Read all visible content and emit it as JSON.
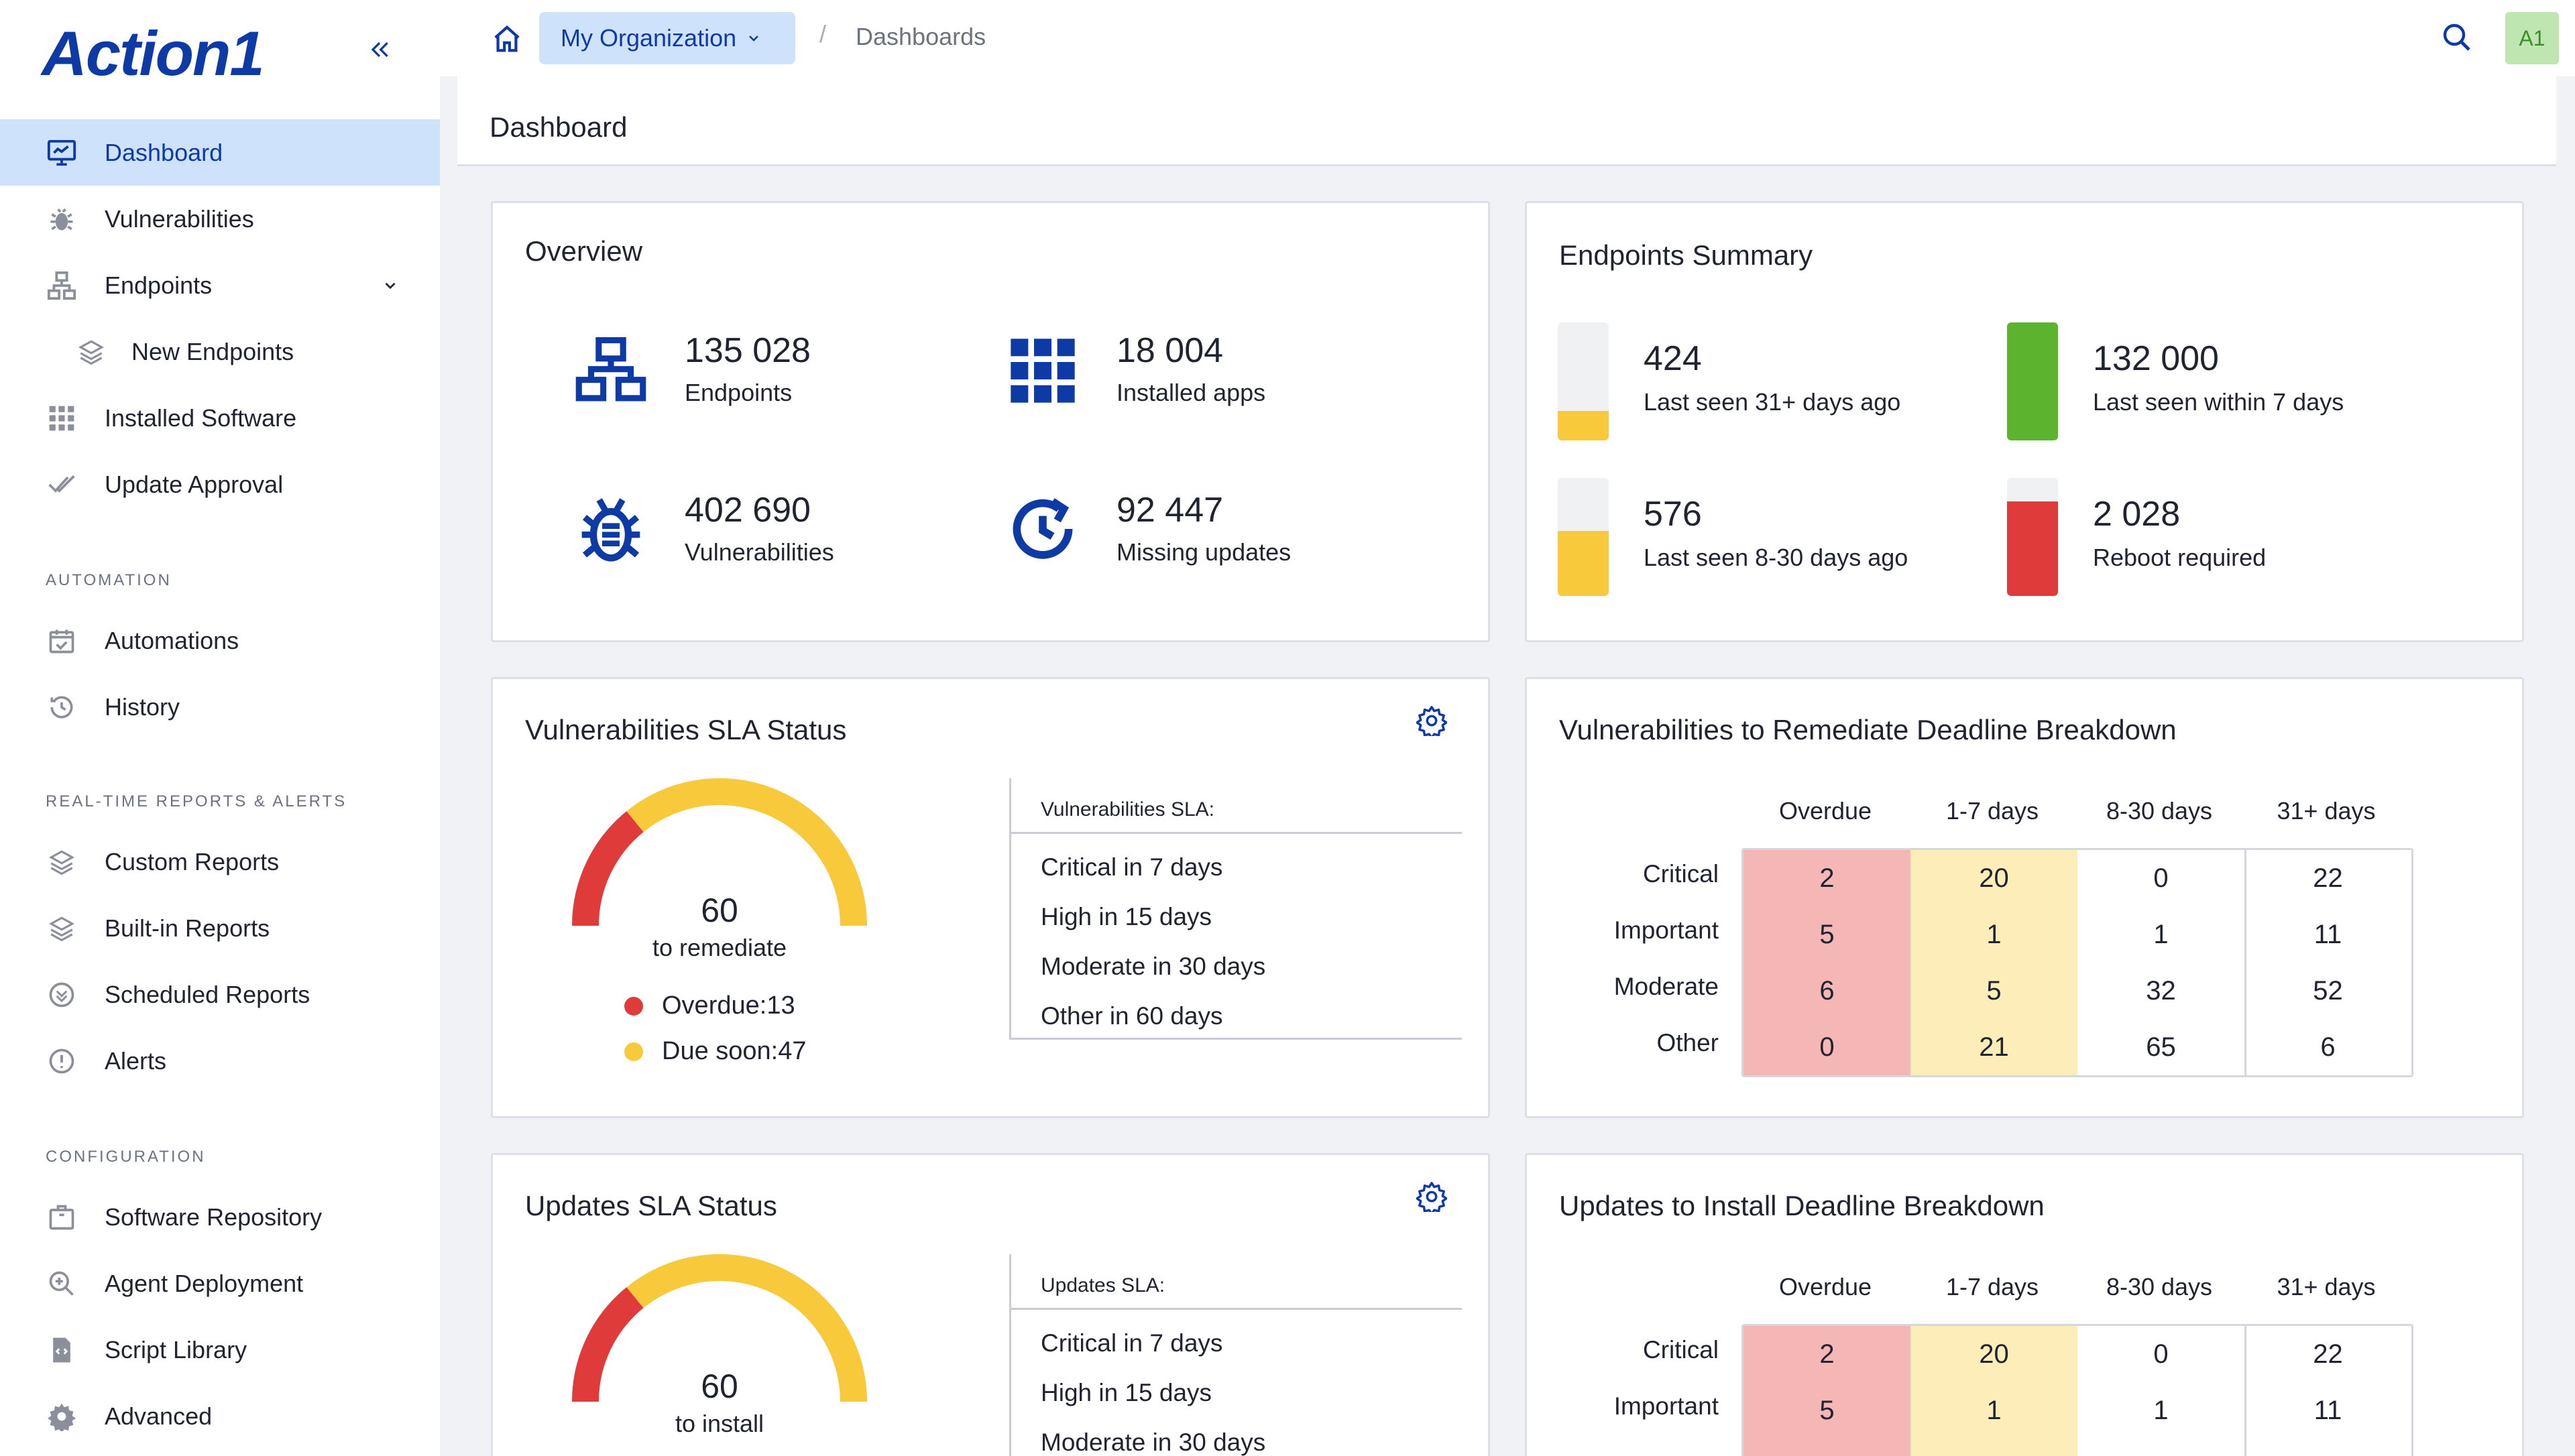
{
  "app": {
    "logo_text": "Action1"
  },
  "sidebar": {
    "items": [
      {
        "label": "Dashboard"
      },
      {
        "label": "Vulnerabilities"
      },
      {
        "label": "Endpoints"
      },
      {
        "label": "New Endpoints"
      },
      {
        "label": "Installed Software"
      },
      {
        "label": "Update Approval"
      },
      {
        "label": "Automations"
      },
      {
        "label": "History"
      },
      {
        "label": "Custom Reports"
      },
      {
        "label": "Built-in Reports"
      },
      {
        "label": "Scheduled Reports"
      },
      {
        "label": "Alerts"
      },
      {
        "label": "Software Repository"
      },
      {
        "label": "Agent Deployment"
      },
      {
        "label": "Script Library"
      },
      {
        "label": "Advanced"
      }
    ],
    "sections": {
      "automation": "AUTOMATION",
      "reports": "REAL-TIME REPORTS & ALERTS",
      "configuration": "CONFIGURATION"
    }
  },
  "topbar": {
    "organization": "My Organization",
    "separator": "/",
    "breadcrumb": "Dashboards",
    "avatar": "A1"
  },
  "page": {
    "title": "Dashboard"
  },
  "overview": {
    "title": "Overview",
    "stats": [
      {
        "value": "135 028",
        "label": "Endpoints",
        "icon": "network-icon"
      },
      {
        "value": "18 004",
        "label": "Installed apps",
        "icon": "grid-apps-icon"
      },
      {
        "value": "402 690",
        "label": "Vulnerabilities",
        "icon": "bug-icon"
      },
      {
        "value": "92 447",
        "label": "Missing updates",
        "icon": "clock-refresh-icon"
      }
    ]
  },
  "endpoints_summary": {
    "title": "Endpoints Summary",
    "items": [
      {
        "value": "424",
        "label": "Last seen 31+ days ago",
        "fill_fraction": 0.25,
        "color": "#f8c93a"
      },
      {
        "value": "132 000",
        "label": "Last seen within 7 days",
        "fill_fraction": 1.0,
        "color": "#5cb32e"
      },
      {
        "value": "576",
        "label": "Last seen 8-30 days ago",
        "fill_fraction": 0.55,
        "color": "#f8c93a"
      },
      {
        "value": "2 028",
        "label": "Reboot required",
        "fill_fraction": 0.8,
        "color": "#e03b3b"
      }
    ]
  },
  "vuln_sla": {
    "title": "Vulnerabilities SLA Status",
    "gauge_value": "60",
    "gauge_sub": "to remediate",
    "overdue_label": "Overdue:",
    "overdue_value": "13",
    "due_soon_label": "Due soon:",
    "due_soon_value": "47",
    "sla_head": "Vulnerabilities SLA:",
    "sla_items": [
      "Critical in 7 days",
      "High in 15 days",
      "Moderate in 30 days",
      "Other in 60 days"
    ],
    "colors": {
      "overdue": "#e03b3b",
      "due_soon": "#f8c93a"
    }
  },
  "vuln_breakdown": {
    "title": "Vulnerabilities to Remediate Deadline Breakdown",
    "columns": [
      "Overdue",
      "1-7 days",
      "8-30 days",
      "31+ days"
    ],
    "rows": [
      {
        "label": "Critical",
        "values": [
          "2",
          "20",
          "0",
          "22"
        ]
      },
      {
        "label": "Important",
        "values": [
          "5",
          "1",
          "1",
          "11"
        ]
      },
      {
        "label": "Moderate",
        "values": [
          "6",
          "5",
          "32",
          "52"
        ]
      },
      {
        "label": "Other",
        "values": [
          "0",
          "21",
          "65",
          "6"
        ]
      }
    ]
  },
  "updates_sla": {
    "title": "Updates SLA Status",
    "gauge_value": "60",
    "gauge_sub": "to install",
    "sla_head": "Updates SLA:",
    "sla_items": [
      "Critical in 7 days",
      "High in 15 days",
      "Moderate in 30 days"
    ]
  },
  "updates_breakdown": {
    "title": "Updates to Install Deadline Breakdown",
    "columns": [
      "Overdue",
      "1-7 days",
      "8-30 days",
      "31+ days"
    ],
    "rows": [
      {
        "label": "Critical",
        "values": [
          "2",
          "20",
          "0",
          "22"
        ]
      },
      {
        "label": "Important",
        "values": [
          "5",
          "1",
          "1",
          "11"
        ]
      }
    ]
  }
}
